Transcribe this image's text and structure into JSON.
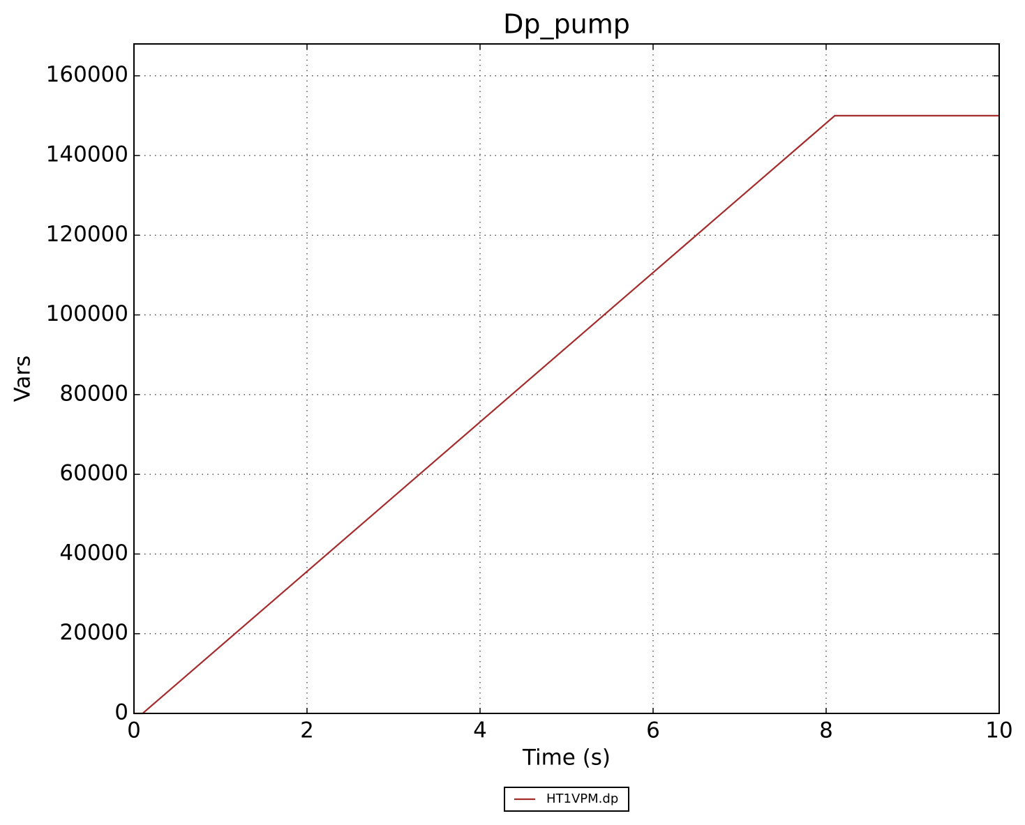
{
  "chart_data": {
    "type": "line",
    "title": "Dp_pump",
    "x_label": "Time (s)",
    "y_label": "Vars",
    "x": [
      0,
      0.1,
      8.1,
      10
    ],
    "series": [
      {
        "name": "HT1VPM.dp",
        "color": "#a52a2a",
        "values": [
          0,
          0,
          150000,
          150000
        ]
      }
    ],
    "xlim": [
      0,
      10
    ],
    "xticks": [
      0,
      2,
      4,
      6,
      8,
      10
    ],
    "ylim": [
      0,
      168000
    ],
    "yticks": [
      0,
      20000,
      40000,
      60000,
      80000,
      100000,
      120000,
      140000,
      160000
    ],
    "grid": true,
    "legend_position": "bottom"
  }
}
